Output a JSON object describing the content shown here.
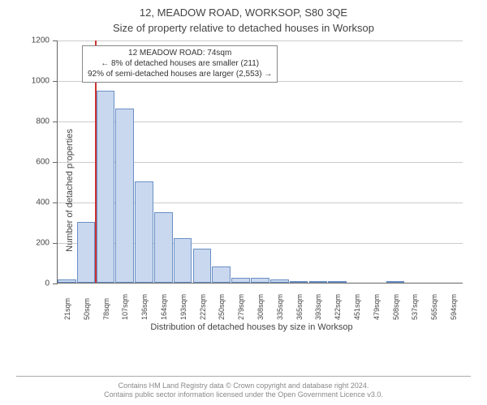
{
  "title_address": "12, MEADOW ROAD, WORKSOP, S80 3QE",
  "title_subtitle": "Size of property relative to detached houses in Worksop",
  "ylabel": "Number of detached properties",
  "xlabel": "Distribution of detached houses by size in Worksop",
  "chart": {
    "type": "histogram",
    "ylim": [
      0,
      1200
    ],
    "ytick_step": 200,
    "yticks": [
      0,
      200,
      400,
      600,
      800,
      1000,
      1200
    ],
    "categories": [
      "21sqm",
      "50sqm",
      "78sqm",
      "107sqm",
      "136sqm",
      "164sqm",
      "193sqm",
      "222sqm",
      "250sqm",
      "279sqm",
      "308sqm",
      "335sqm",
      "365sqm",
      "393sqm",
      "422sqm",
      "451sqm",
      "479sqm",
      "508sqm",
      "537sqm",
      "565sqm",
      "594sqm"
    ],
    "values": [
      15,
      300,
      950,
      860,
      500,
      350,
      220,
      170,
      80,
      25,
      25,
      15,
      10,
      10,
      10,
      0,
      0,
      10,
      0,
      0,
      0
    ],
    "bar_fill": "#c9d8ef",
    "bar_stroke": "#6a8fc5",
    "grid_color": "#cccccc",
    "vline_value": 74,
    "vline_color": "#cc3333",
    "background_color": "#ffffff"
  },
  "annotation": {
    "line1": "12 MEADOW ROAD: 74sqm",
    "line2": "← 8% of detached houses are smaller (211)",
    "line3": "92% of semi-detached houses are larger (2,553) →"
  },
  "footer_line1": "Contains HM Land Registry data © Crown copyright and database right 2024.",
  "footer_line2": "Contains public sector information licensed under the Open Government Licence v3.0."
}
